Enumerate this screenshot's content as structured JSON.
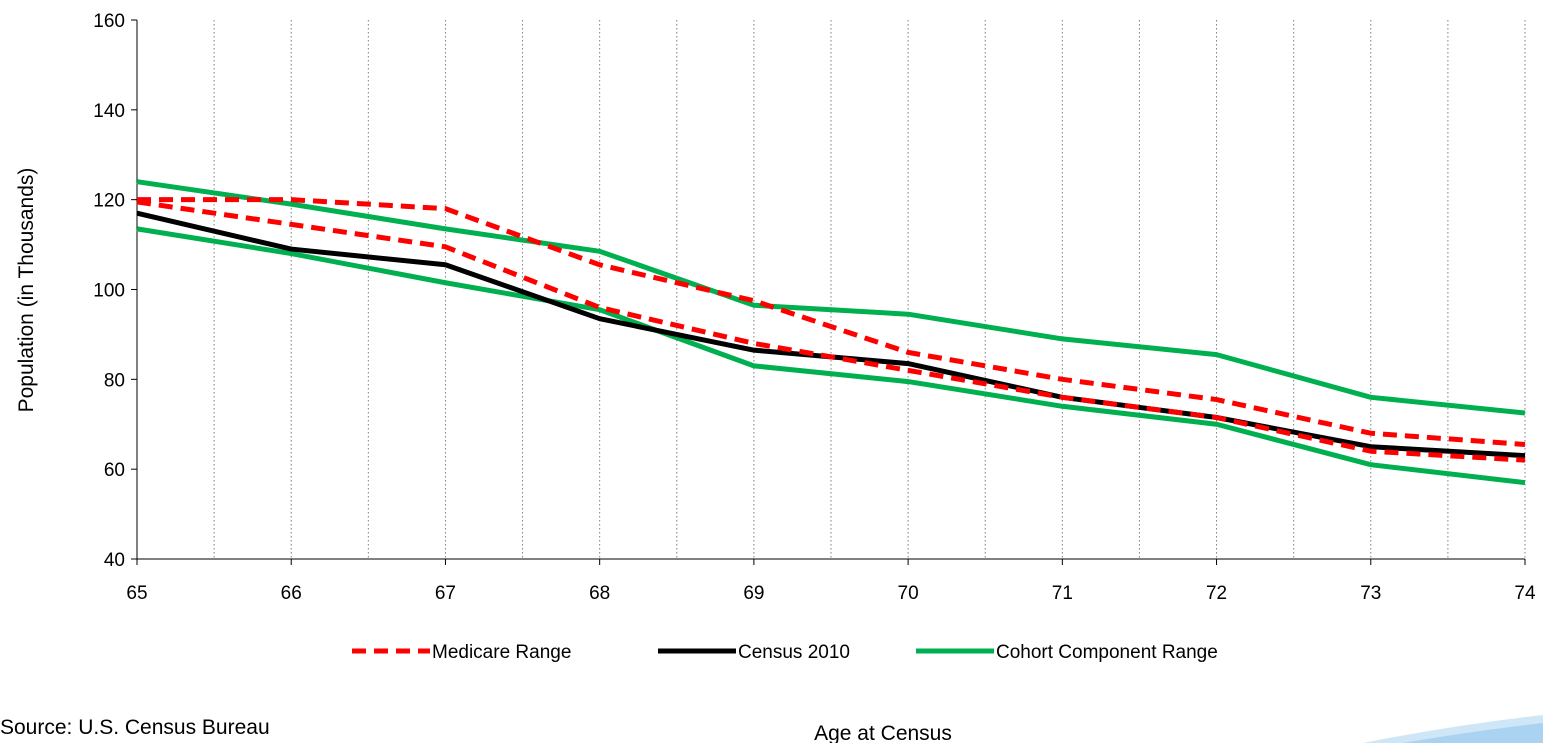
{
  "chart_data": {
    "type": "line",
    "title": "",
    "xlabel": "Age at Census",
    "ylabel": "Population (in Thousands)",
    "x": [
      65,
      66,
      67,
      68,
      69,
      70,
      71,
      72,
      73,
      74
    ],
    "xlim": [
      65,
      74
    ],
    "ylim": [
      40,
      160
    ],
    "yticks": [
      40,
      60,
      80,
      100,
      120,
      140,
      160
    ],
    "grid": "vertical dotted lines at each age and half-age",
    "legend_position": "bottom",
    "series": [
      {
        "name": "Medicare Range",
        "color": "#ff0000",
        "style": "dashed",
        "legend": true,
        "values": [
          120,
          120,
          118,
          105.5,
          97.5,
          86,
          80,
          75.5,
          68,
          65.5
        ]
      },
      {
        "name": "Medicare Range",
        "color": "#ff0000",
        "style": "dashed",
        "legend": false,
        "values": [
          119.5,
          114.5,
          109.5,
          96,
          88,
          82,
          76,
          71.5,
          64,
          62
        ]
      },
      {
        "name": "Census 2010",
        "color": "#000000",
        "style": "solid",
        "legend": true,
        "values": [
          117,
          109,
          105.5,
          93.5,
          86.5,
          83.5,
          76,
          71.5,
          65,
          63
        ]
      },
      {
        "name": "Cohort Component Range",
        "color": "#00b050",
        "style": "solid",
        "legend": true,
        "values": [
          124,
          119,
          113.5,
          108.5,
          96.5,
          94.5,
          89,
          85.5,
          76,
          72.5
        ]
      },
      {
        "name": "Cohort Component Range",
        "color": "#00b050",
        "style": "solid",
        "legend": false,
        "values": [
          113.5,
          108,
          101.5,
          95.5,
          83,
          79.5,
          74,
          70,
          61,
          57
        ]
      }
    ]
  },
  "footer": {
    "source_text": "Source: U.S. Census Bureau"
  }
}
